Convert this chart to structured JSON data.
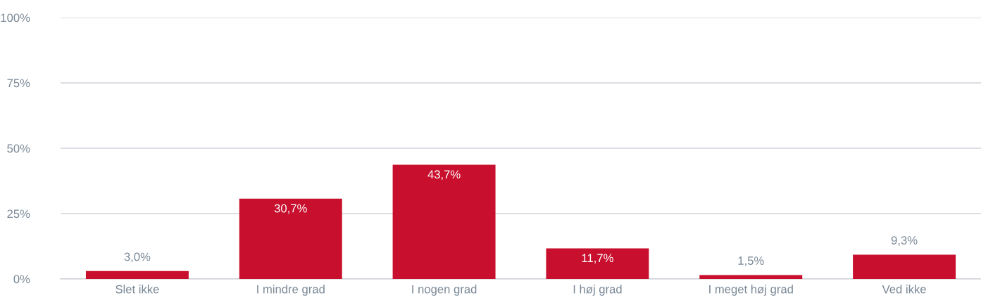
{
  "chart_data": {
    "type": "bar",
    "categories": [
      "Slet ikke",
      "I mindre grad",
      "I nogen grad",
      "I høj grad",
      "I meget høj grad",
      "Ved ikke"
    ],
    "values": [
      3.0,
      30.7,
      43.7,
      11.7,
      1.5,
      9.3
    ],
    "value_labels": [
      "3,0%",
      "30,7%",
      "43,7%",
      "11,7%",
      "1,5%",
      "9,3%"
    ],
    "color": "#c8102e",
    "ylim": [
      0,
      100
    ],
    "yticks": [
      {
        "value": 0,
        "label": "0%"
      },
      {
        "value": 25,
        "label": "25%"
      },
      {
        "value": 50,
        "label": "50%"
      },
      {
        "value": 75,
        "label": "75%"
      },
      {
        "value": 100,
        "label": "100%"
      }
    ],
    "grid": "y"
  }
}
